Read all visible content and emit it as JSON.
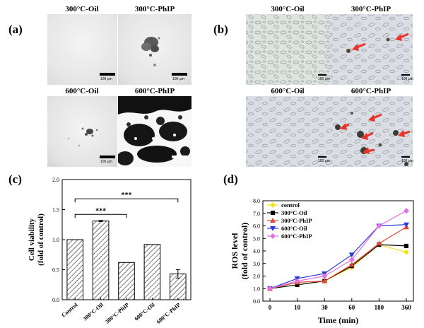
{
  "panels": {
    "a": {
      "label": "(a)",
      "images": [
        {
          "label": "300°C-Oil",
          "scale": "100 μm"
        },
        {
          "label": "300°C-PhIP",
          "scale": "100 μm"
        },
        {
          "label": "600°C-Oil",
          "scale": "100 μm"
        },
        {
          "label": "600°C-PhIP",
          "scale": "100 μm"
        }
      ]
    },
    "b": {
      "label": "(b)",
      "images": [
        {
          "label": "300°C-Oil",
          "scale": "100 μm"
        },
        {
          "label": "300°C-PhIP",
          "scale": "100 μm"
        },
        {
          "label": "600°C-Oil",
          "scale": "100 μm"
        },
        {
          "label": "600°C-PhIP",
          "scale": "100 μm"
        }
      ],
      "arrow_color": "#e8322a"
    },
    "c": {
      "label": "(c)"
    },
    "d": {
      "label": "(d)"
    }
  },
  "chart_data": [
    {
      "type": "bar",
      "ylabel": "Cell viability",
      "ylabel2": "(fold of control)",
      "categories": [
        "Control",
        "300°C-Oil",
        "300°C-PhIP",
        "600°C-Oil",
        "600°C-PhIP"
      ],
      "values": [
        1.0,
        1.31,
        0.62,
        0.92,
        0.43
      ],
      "errors": [
        0.0,
        0.01,
        0.0,
        0.0,
        0.07
      ],
      "ylim": [
        0.0,
        2.0
      ],
      "yticks": [
        "0.0",
        "0.5",
        "1.0",
        "1.5",
        "2.0"
      ],
      "significance": [
        {
          "from": "Control",
          "to": "300°C-PhIP",
          "label": "***"
        },
        {
          "from": "Control",
          "to": "600°C-PhIP",
          "label": "***"
        }
      ],
      "bar_fill": "hatched"
    },
    {
      "type": "line",
      "xlabel": "Time (min)",
      "ylabel": "ROS level",
      "ylabel2": "(fold of control)",
      "x": [
        "0",
        "10",
        "30",
        "60",
        "180",
        "360"
      ],
      "ylim": [
        0.0,
        8.0
      ],
      "yticks": [
        "0.0",
        "1.0",
        "2.0",
        "3.0",
        "4.0",
        "5.0",
        "6.0",
        "7.0",
        "8.0"
      ],
      "series": [
        {
          "name": "control",
          "color": "#f2e31b",
          "marker": "diamond",
          "values": [
            1.0,
            1.3,
            1.6,
            2.7,
            4.5,
            3.9
          ]
        },
        {
          "name": "300°C-Oil",
          "color": "#000000",
          "marker": "square",
          "values": [
            1.0,
            1.3,
            1.6,
            2.8,
            4.5,
            4.4
          ]
        },
        {
          "name": "300°C-PhIP",
          "color": "#e0483a",
          "marker": "triangle-up",
          "values": [
            1.0,
            1.5,
            1.6,
            2.9,
            4.6,
            5.9
          ]
        },
        {
          "name": "600°C-Oil",
          "color": "#2a3ad6",
          "marker": "triangle-down",
          "values": [
            1.0,
            1.8,
            2.2,
            3.7,
            6.0,
            6.1
          ]
        },
        {
          "name": "600°C-PhIP",
          "color": "#e273e6",
          "marker": "diamond",
          "values": [
            1.0,
            1.6,
            2.0,
            3.3,
            6.0,
            7.2
          ]
        }
      ]
    }
  ]
}
